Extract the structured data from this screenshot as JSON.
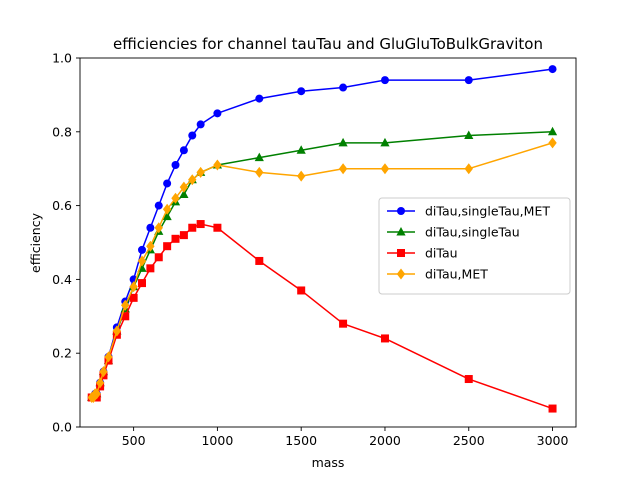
{
  "chart_data": {
    "type": "line",
    "title": "efficiencies for channel tauTau and GluGluToBulkGraviton",
    "xlabel": "mass",
    "ylabel": "efficiency",
    "xlim": [
      180,
      3140
    ],
    "ylim": [
      0.0,
      1.0
    ],
    "x_ticks": [
      500,
      1000,
      1500,
      2000,
      2500,
      3000
    ],
    "y_ticks": [
      0.0,
      0.2,
      0.4,
      0.6,
      0.8,
      1.0
    ],
    "grid": false,
    "legend_position": "center-right",
    "series": [
      {
        "name": "diTau,singleTau,MET",
        "color": "#0000ff",
        "marker": "circle",
        "x": [
          250,
          260,
          270,
          280,
          300,
          320,
          350,
          400,
          450,
          500,
          550,
          600,
          650,
          700,
          750,
          800,
          850,
          900,
          1000,
          1250,
          1500,
          1750,
          2000,
          2500,
          3000
        ],
        "y": [
          0.08,
          0.08,
          0.09,
          0.09,
          0.12,
          0.15,
          0.19,
          0.27,
          0.34,
          0.4,
          0.48,
          0.54,
          0.6,
          0.66,
          0.71,
          0.75,
          0.79,
          0.82,
          0.85,
          0.89,
          0.91,
          0.92,
          0.94,
          0.94,
          0.97
        ]
      },
      {
        "name": "diTau,singleTau",
        "color": "#008000",
        "marker": "triangle",
        "x": [
          250,
          260,
          270,
          280,
          300,
          320,
          350,
          400,
          450,
          500,
          550,
          600,
          650,
          700,
          750,
          800,
          850,
          900,
          1000,
          1250,
          1500,
          1750,
          2000,
          2500,
          3000
        ],
        "y": [
          0.08,
          0.08,
          0.08,
          0.09,
          0.12,
          0.15,
          0.18,
          0.26,
          0.32,
          0.38,
          0.43,
          0.48,
          0.53,
          0.57,
          0.61,
          0.63,
          0.67,
          0.69,
          0.71,
          0.73,
          0.75,
          0.77,
          0.77,
          0.79,
          0.8
        ]
      },
      {
        "name": "diTau",
        "color": "#ff0000",
        "marker": "square",
        "x": [
          250,
          260,
          270,
          280,
          300,
          320,
          350,
          400,
          450,
          500,
          550,
          600,
          650,
          700,
          750,
          800,
          850,
          900,
          1000,
          1250,
          1500,
          1750,
          2000,
          2500,
          3000
        ],
        "y": [
          0.08,
          0.08,
          0.08,
          0.08,
          0.11,
          0.14,
          0.18,
          0.25,
          0.3,
          0.35,
          0.39,
          0.43,
          0.46,
          0.49,
          0.51,
          0.52,
          0.54,
          0.55,
          0.54,
          0.45,
          0.37,
          0.28,
          0.24,
          0.13,
          0.05
        ]
      },
      {
        "name": "diTau,MET",
        "color": "#ffa500",
        "marker": "diamond",
        "x": [
          250,
          260,
          270,
          280,
          300,
          320,
          350,
          400,
          450,
          500,
          550,
          600,
          650,
          700,
          750,
          800,
          850,
          900,
          1000,
          1250,
          1500,
          1750,
          2000,
          2500,
          3000
        ],
        "y": [
          0.08,
          0.08,
          0.09,
          0.09,
          0.12,
          0.15,
          0.19,
          0.26,
          0.33,
          0.38,
          0.45,
          0.49,
          0.54,
          0.59,
          0.62,
          0.65,
          0.67,
          0.69,
          0.71,
          0.69,
          0.68,
          0.7,
          0.7,
          0.7,
          0.77
        ]
      }
    ]
  }
}
